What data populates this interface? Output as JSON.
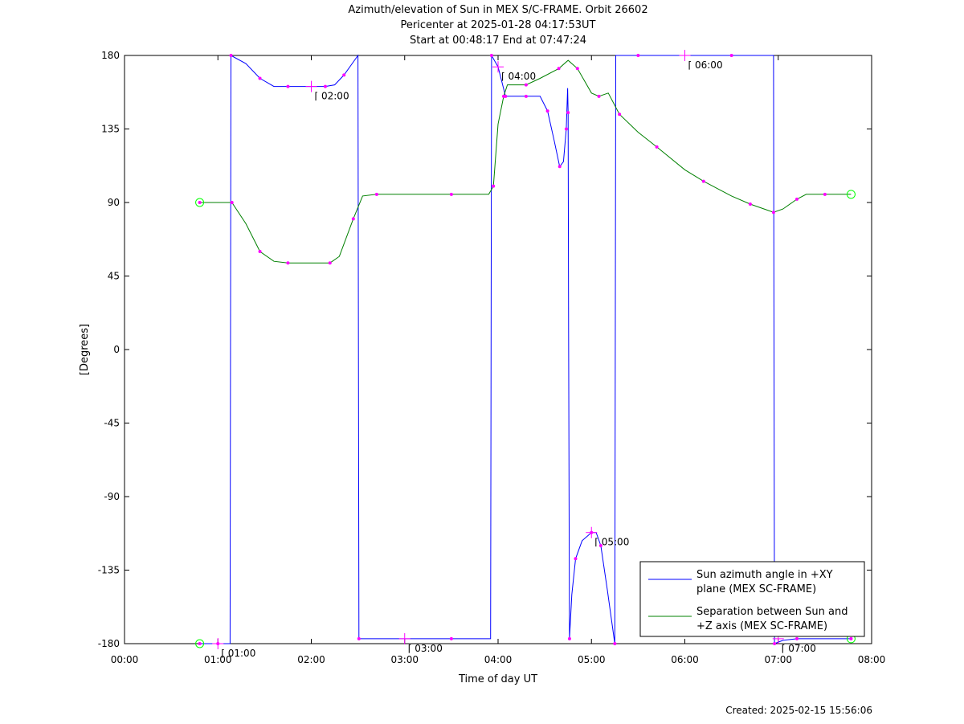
{
  "title": {
    "line1": "Azimuth/elevation of Sun in MEX S/C-FRAME.  Orbit 26602",
    "line2": "Pericenter at 2025-01-28 04:17:53UT",
    "line3": "Start at 00:48:17 End at 07:47:24"
  },
  "footer": "Created: 2025-02-15 15:56:06",
  "colors": {
    "azimuth": "#0000ff",
    "separation": "#008000",
    "markers": "#ff00ff",
    "endpoints": "#00ff00"
  },
  "chart_data": {
    "type": "line",
    "xlabel": "Time of day UT",
    "ylabel": "[Degrees]",
    "xlim": [
      0,
      8
    ],
    "ylim": [
      -180,
      180
    ],
    "x_ticks": [
      "00:00",
      "01:00",
      "02:00",
      "03:00",
      "04:00",
      "05:00",
      "06:00",
      "07:00",
      "08:00"
    ],
    "y_ticks": [
      "180",
      "135",
      "90",
      "45",
      "0",
      "-45",
      "-90",
      "-135",
      "-180"
    ],
    "legend_position": "bottom-right",
    "series": [
      {
        "name": "Sun azimuth angle in +XY plane (MEX SC-FRAME)",
        "legend_lines": [
          "Sun azimuth angle in +XY",
          "plane (MEX SC-FRAME)"
        ],
        "color": "#0000ff",
        "points": [
          [
            0.805,
            -180
          ],
          [
            0.9,
            -180
          ],
          [
            1.0,
            -180
          ],
          [
            1.13,
            -180
          ],
          [
            1.14,
            180
          ],
          [
            1.3,
            175
          ],
          [
            1.45,
            166
          ],
          [
            1.6,
            161
          ],
          [
            1.75,
            161
          ],
          [
            2.0,
            161
          ],
          [
            2.15,
            161
          ],
          [
            2.25,
            162
          ],
          [
            2.35,
            168
          ],
          [
            2.5,
            180
          ],
          [
            2.51,
            -177
          ],
          [
            3.0,
            -177
          ],
          [
            3.5,
            -177
          ],
          [
            3.92,
            -177
          ],
          [
            3.93,
            180
          ],
          [
            4.0,
            173
          ],
          [
            4.08,
            155
          ],
          [
            4.2,
            155
          ],
          [
            4.3,
            155
          ],
          [
            4.45,
            155
          ],
          [
            4.53,
            146
          ],
          [
            4.6,
            128
          ],
          [
            4.66,
            112
          ],
          [
            4.7,
            115
          ],
          [
            4.73,
            135
          ],
          [
            4.745,
            160
          ],
          [
            4.75,
            145
          ],
          [
            4.755,
            10
          ],
          [
            4.765,
            -177
          ],
          [
            4.79,
            -150
          ],
          [
            4.83,
            -128
          ],
          [
            4.9,
            -117
          ],
          [
            5.0,
            -112
          ],
          [
            5.05,
            -112
          ],
          [
            5.1,
            -120
          ],
          [
            5.17,
            -147
          ],
          [
            5.25,
            -180
          ],
          [
            5.26,
            180
          ],
          [
            5.5,
            180
          ],
          [
            6.0,
            180
          ],
          [
            6.5,
            180
          ],
          [
            6.95,
            180
          ],
          [
            6.96,
            -180
          ],
          [
            7.05,
            -178
          ],
          [
            7.2,
            -177
          ],
          [
            7.5,
            -177
          ],
          [
            7.78,
            -177
          ]
        ],
        "labels": [
          {
            "t": 2.0,
            "v": 161,
            "text": "02:00"
          },
          {
            "t": 3.0,
            "v": -177,
            "text": "03:00"
          },
          {
            "t": 4.0,
            "v": 173,
            "text": "04:00"
          },
          {
            "t": 5.0,
            "v": -112,
            "text": "05:00"
          },
          {
            "t": 6.0,
            "v": 180,
            "text": "06:00"
          },
          {
            "t": 7.0,
            "v": -177,
            "text": "07:00"
          }
        ]
      },
      {
        "name": "Separation between Sun and +Z axis (MEX SC-FRAME)",
        "legend_lines": [
          "Separation between Sun and",
          "+Z axis (MEX SC-FRAME)"
        ],
        "color": "#008000",
        "points": [
          [
            0.805,
            90
          ],
          [
            1.0,
            90
          ],
          [
            1.15,
            90
          ],
          [
            1.3,
            77
          ],
          [
            1.45,
            60
          ],
          [
            1.6,
            54
          ],
          [
            1.75,
            53
          ],
          [
            2.0,
            53
          ],
          [
            2.2,
            53
          ],
          [
            2.3,
            57
          ],
          [
            2.45,
            80
          ],
          [
            2.55,
            94
          ],
          [
            2.7,
            95
          ],
          [
            3.0,
            95
          ],
          [
            3.5,
            95
          ],
          [
            3.9,
            95
          ],
          [
            3.95,
            100
          ],
          [
            4.0,
            138
          ],
          [
            4.06,
            155
          ],
          [
            4.1,
            162
          ],
          [
            4.3,
            162
          ],
          [
            4.45,
            166
          ],
          [
            4.65,
            172
          ],
          [
            4.75,
            177
          ],
          [
            4.85,
            172
          ],
          [
            5.0,
            157
          ],
          [
            5.08,
            155
          ],
          [
            5.18,
            157
          ],
          [
            5.3,
            144
          ],
          [
            5.5,
            133
          ],
          [
            5.7,
            124
          ],
          [
            6.0,
            110
          ],
          [
            6.2,
            103
          ],
          [
            6.5,
            94
          ],
          [
            6.7,
            89
          ],
          [
            6.85,
            86
          ],
          [
            6.95,
            84
          ],
          [
            7.05,
            86
          ],
          [
            7.2,
            92
          ],
          [
            7.3,
            95
          ],
          [
            7.5,
            95
          ],
          [
            7.78,
            95
          ]
        ],
        "labels": [
          {
            "t": 1.0,
            "v": -180,
            "text": "01:00"
          }
        ]
      }
    ]
  }
}
